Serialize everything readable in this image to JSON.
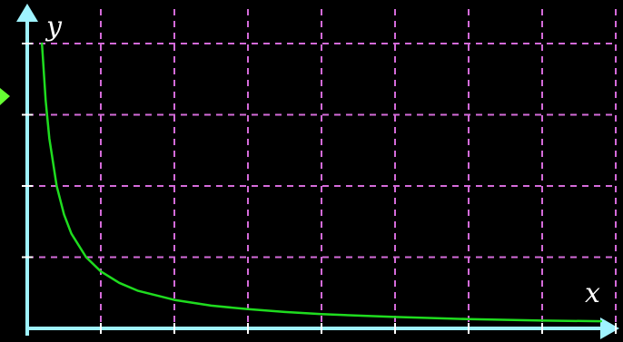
{
  "chart_data": {
    "type": "line",
    "title": "",
    "xlabel": "x",
    "ylabel": "y",
    "xlim": [
      0,
      8
    ],
    "ylim": [
      0,
      4
    ],
    "grid": true,
    "series": [
      {
        "points": [
          [
            0.2,
            4.0
          ],
          [
            0.25,
            3.2
          ],
          [
            0.3,
            2.67
          ],
          [
            0.4,
            2.0
          ],
          [
            0.5,
            1.6
          ],
          [
            0.6,
            1.33
          ],
          [
            0.8,
            1.0
          ],
          [
            1.0,
            0.8
          ],
          [
            1.25,
            0.64
          ],
          [
            1.5,
            0.53
          ],
          [
            2.0,
            0.4
          ],
          [
            2.5,
            0.32
          ],
          [
            3.0,
            0.27
          ],
          [
            3.5,
            0.23
          ],
          [
            4.0,
            0.2
          ],
          [
            5.0,
            0.16
          ],
          [
            6.0,
            0.13
          ],
          [
            7.0,
            0.11
          ],
          [
            7.8,
            0.1
          ]
        ]
      }
    ],
    "colors": {
      "background": "#000000",
      "axis": "#9ff3ff",
      "grid": "#d46bd9",
      "curve": "#1fdc1f",
      "edge_arrow": "#66ff33"
    }
  }
}
